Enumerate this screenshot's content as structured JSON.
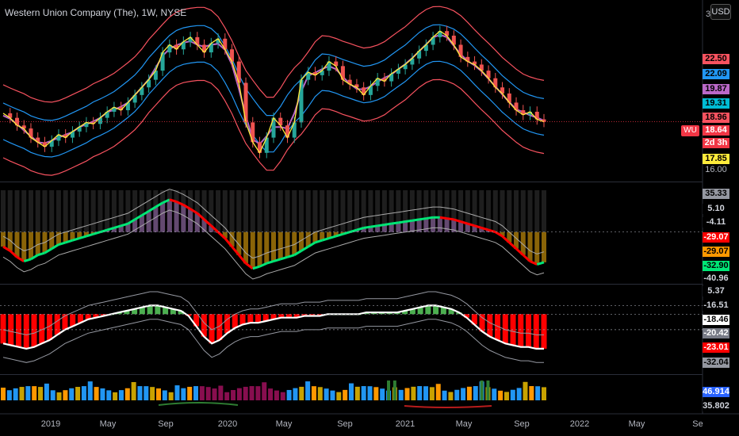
{
  "header": {
    "title": "Western Union Company (The), 1W, NYSE",
    "currency": "USD",
    "scale_top": "3"
  },
  "symbol_tag": "WU",
  "price_axis": {
    "tags": [
      {
        "text": "22.50",
        "bg": "#f7525f",
        "fg": "#000000"
      },
      {
        "text": "22.09",
        "bg": "#2196f3",
        "fg": "#000000"
      },
      {
        "text": "19.87",
        "bg": "#ba68c8",
        "fg": "#000000"
      },
      {
        "text": "19.31",
        "bg": "#00bcd4",
        "fg": "#000000"
      },
      {
        "text": "18.96",
        "bg": "#f7525f",
        "fg": "#000000"
      },
      {
        "text": "18.64",
        "bg": "#f23645",
        "fg": "#ffffff"
      },
      {
        "text": "2d 3h",
        "bg": "#f23645",
        "fg": "#ffffff"
      },
      {
        "text": "17.85",
        "bg": "#ffeb3b",
        "fg": "#000000"
      }
    ],
    "plain": "16.00"
  },
  "panel2_axis": {
    "tags": [
      {
        "text": "35.33",
        "bg": "#9598a1",
        "fg": "#000000"
      },
      {
        "text": "5.10",
        "bg": "#000000",
        "fg": "#d1d4dc"
      },
      {
        "text": "-4.11",
        "bg": "#000000",
        "fg": "#d1d4dc"
      },
      {
        "text": "-29.07",
        "bg": "#ff0000",
        "fg": "#ffffff"
      },
      {
        "text": "-29.07",
        "bg": "#ff9800",
        "fg": "#000000"
      },
      {
        "text": "-32.90",
        "bg": "#00e676",
        "fg": "#000000"
      },
      {
        "text": "-40.96",
        "bg": "#000000",
        "fg": "#d1d4dc"
      }
    ]
  },
  "panel3_axis": {
    "tags": [
      {
        "text": "5.37",
        "bg": "#000000",
        "fg": "#d1d4dc"
      },
      {
        "text": "-16.51",
        "bg": "#000000",
        "fg": "#d1d4dc"
      },
      {
        "text": "-18.46",
        "bg": "#ffffff",
        "fg": "#000000"
      },
      {
        "text": "-20.42",
        "bg": "#787b86",
        "fg": "#ffffff"
      },
      {
        "text": "-23.01",
        "bg": "#ff0000",
        "fg": "#ffffff"
      },
      {
        "text": "-32.04",
        "bg": "#9598a1",
        "fg": "#000000"
      }
    ]
  },
  "panel4_axis": {
    "tags": [
      {
        "text": "46.914",
        "bg": "#2962ff",
        "fg": "#ffffff"
      },
      {
        "text": "35.802",
        "bg": "#000000",
        "fg": "#d1d4dc"
      }
    ]
  },
  "time_axis": [
    "2019",
    "May",
    "Sep",
    "2020",
    "May",
    "Sep",
    "2021",
    "May",
    "Sep",
    "2022",
    "May",
    "Se"
  ],
  "chart_data": {
    "type": "candlestick",
    "symbol": "WU",
    "interval": "1W",
    "exchange": "NYSE",
    "price_range": [
      15.6,
      25.6
    ],
    "last_price": 18.64,
    "price_series": [
      19.2,
      18.9,
      18.4,
      18.2,
      17.6,
      17.3,
      17.0,
      17.4,
      17.8,
      17.6,
      18.0,
      18.3,
      18.6,
      18.5,
      18.9,
      19.3,
      19.6,
      19.4,
      19.9,
      20.4,
      20.9,
      21.4,
      22.0,
      23.2,
      23.7,
      23.4,
      23.9,
      24.2,
      23.7,
      23.2,
      23.8,
      24.1,
      23.4,
      22.6,
      21.2,
      18.6,
      17.3,
      16.6,
      17.6,
      18.9,
      18.4,
      17.6,
      18.6,
      21.4,
      21.9,
      21.7,
      22.0,
      22.6,
      22.3,
      21.4,
      21.1,
      20.9,
      20.4,
      21.0,
      21.5,
      21.3,
      21.8,
      22.1,
      22.4,
      22.8,
      23.3,
      23.7,
      24.2,
      24.6,
      24.3,
      23.7,
      22.9,
      22.6,
      22.4,
      22.0,
      21.5,
      20.9,
      20.5,
      19.9,
      19.4,
      19.1,
      19.3,
      18.8,
      18.64
    ],
    "price_axis_labels": [
      "22.50",
      "22.09",
      "19.87",
      "19.31",
      "18.96",
      "18.64",
      "17.85",
      "16.00"
    ],
    "panel2": {
      "range": [
        -45,
        40
      ],
      "series": [
        -14,
        -18,
        -24,
        -28,
        -26,
        -22,
        -20,
        -16,
        -12,
        -10,
        -8,
        -6,
        -4,
        -2,
        0,
        2,
        4,
        6,
        8,
        12,
        16,
        20,
        24,
        28,
        31,
        29,
        26,
        22,
        18,
        12,
        6,
        0,
        -6,
        -14,
        -22,
        -30,
        -35,
        -33,
        -30,
        -28,
        -26,
        -24,
        -22,
        -18,
        -14,
        -10,
        -8,
        -6,
        -4,
        -2,
        0,
        2,
        4,
        5,
        6,
        7,
        8,
        9,
        10,
        11,
        12,
        13,
        14,
        14,
        13,
        12,
        10,
        8,
        6,
        4,
        2,
        0,
        -4,
        -10,
        -16,
        -22,
        -28,
        -31,
        -29
      ],
      "axis_labels": [
        "35.33",
        "5.10",
        "-4.11",
        "-29.07",
        "-29.07",
        "-32.90",
        "-40.96"
      ]
    },
    "panel3": {
      "range": [
        -35,
        10
      ],
      "series": [
        -20,
        -21,
        -22,
        -23,
        -22,
        -20,
        -18,
        -15,
        -12,
        -10,
        -8,
        -6,
        -5,
        -4,
        -3,
        -2,
        -1,
        0,
        1,
        2,
        2,
        1,
        0,
        -1,
        -4,
        -10,
        -16,
        -20,
        -18,
        -14,
        -11,
        -9,
        -8,
        -8,
        -7,
        -6,
        -5,
        -5,
        -5,
        -4,
        -4,
        -4,
        -3,
        -3,
        -3,
        -3,
        -3,
        -2,
        -2,
        -2,
        -2,
        -2,
        -1,
        0,
        1,
        2,
        2,
        1,
        0,
        -2,
        -5,
        -9,
        -13,
        -16,
        -18,
        -20,
        -21,
        -22,
        -22,
        -23,
        -23
      ],
      "axis_labels": [
        "5.37",
        "-16.51",
        "-18.46",
        "-20.42",
        "-23.01",
        "-32.04"
      ]
    },
    "panel4": {
      "range": [
        30,
        55
      ],
      "last": 46.914,
      "axis_labels": [
        "46.914",
        "35.802"
      ]
    },
    "x_labels": [
      "2019",
      "May",
      "Sep",
      "2020",
      "May",
      "Sep",
      "2021",
      "May",
      "Sep",
      "2022",
      "May",
      "Se"
    ]
  }
}
